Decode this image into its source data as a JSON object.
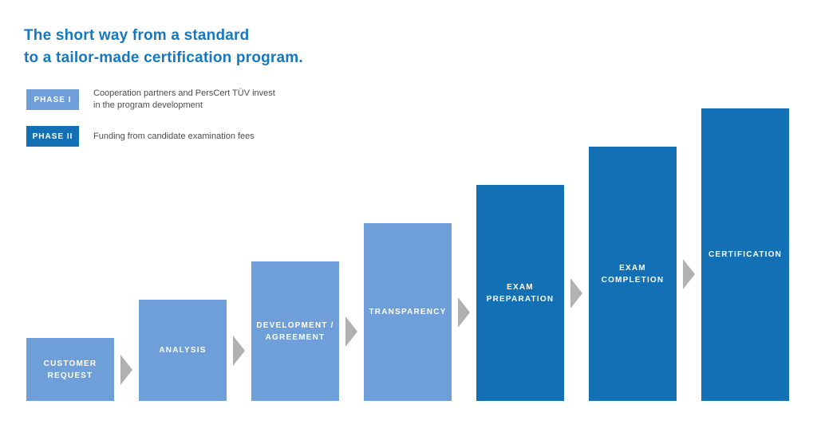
{
  "title": {
    "line1": "The short way from a standard",
    "line2": "to a tailor-made certification program."
  },
  "legend": [
    {
      "label": "PHASE I",
      "phase": "phase1",
      "description": "Cooperation partners and PersCert TÜV invest\nin the program development"
    },
    {
      "label": "PHASE II",
      "phase": "phase2",
      "description": "Funding from candidate examination fees"
    }
  ],
  "steps": [
    {
      "label": "CUSTOMER\nREQUEST",
      "phase": "phase1"
    },
    {
      "label": "ANALYSIS",
      "phase": "phase1"
    },
    {
      "label": "DEVELOPMENT /\nAGREEMENT",
      "phase": "phase1"
    },
    {
      "label": "TRANSPARENCY",
      "phase": "phase1"
    },
    {
      "label": "EXAM\nPREPARATION",
      "phase": "phase2"
    },
    {
      "label": "EXAM\nCOMPLETION",
      "phase": "phase2"
    },
    {
      "label": "CERTIFICATION",
      "phase": "phase2"
    }
  ],
  "colors": {
    "phase1": "#6f9fd8",
    "phase2": "#1470b5",
    "title": "#1578c0",
    "arrow": "#b1b1b1",
    "legend_text": "#4c4c4e",
    "background": "#ffffff"
  }
}
